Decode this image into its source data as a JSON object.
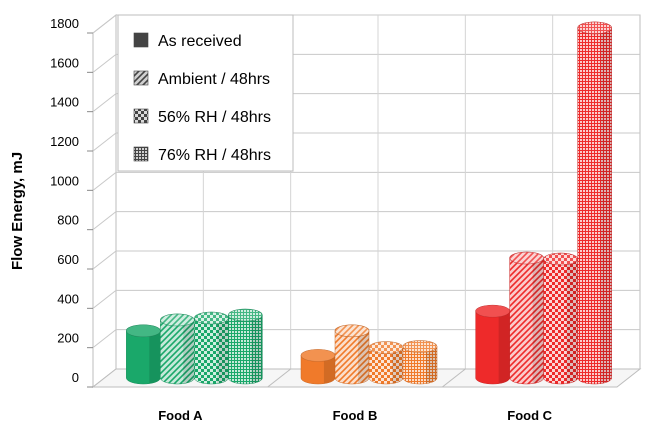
{
  "chart_data": {
    "type": "bar",
    "style": "3d-cylinder",
    "title": "",
    "xlabel": "",
    "ylabel": "Flow Energy, mJ",
    "ylim": [
      0,
      1800
    ],
    "yticks": [
      0,
      200,
      400,
      600,
      800,
      1000,
      1200,
      1400,
      1600,
      1800
    ],
    "grid": true,
    "legend_position": "top-left",
    "categories": [
      "Food A",
      "Food B",
      "Food C"
    ],
    "series": [
      {
        "name": "As received",
        "pattern": "solid",
        "values": [
          240,
          115,
          340
        ]
      },
      {
        "name": "Ambient / 48hrs",
        "pattern": "diagonal-hatch",
        "values": [
          295,
          240,
          610
        ]
      },
      {
        "name": "56% RH / 48hrs",
        "pattern": "checker",
        "values": [
          305,
          155,
          605
        ]
      },
      {
        "name": "76% RH / 48hrs",
        "pattern": "grid",
        "values": [
          320,
          160,
          1780
        ]
      }
    ],
    "colors": {
      "Food A": "#1aa86a",
      "Food B": "#f07a2a",
      "Food C": "#ee2a2a"
    }
  }
}
